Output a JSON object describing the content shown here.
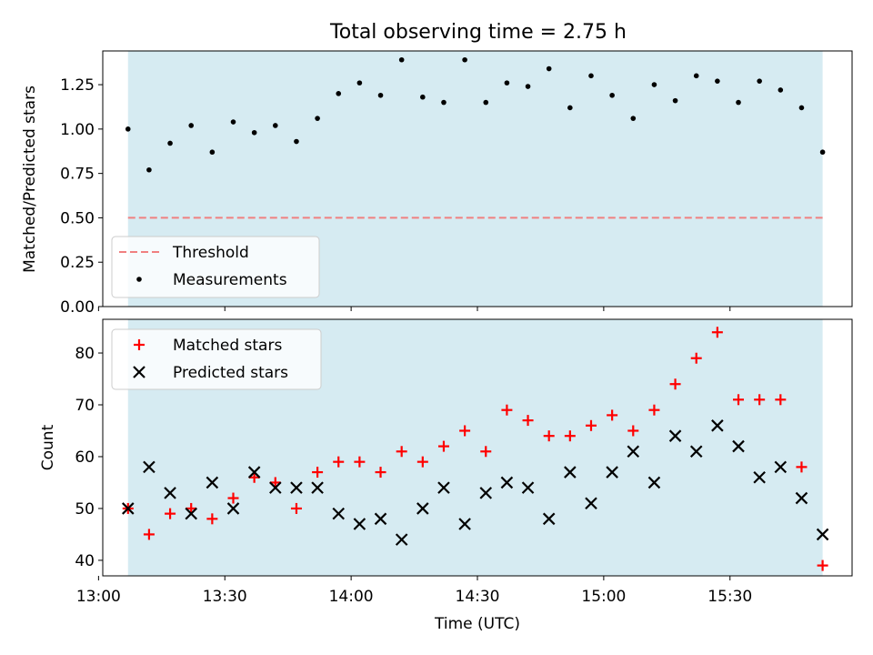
{
  "chart_data": [
    {
      "type": "scatter",
      "title": "Total observing time = 2.75 h",
      "xlabel": "",
      "ylabel": "Matched/Predicted stars",
      "xlim": [
        "13:01",
        "15:59"
      ],
      "ylim": [
        0,
        1.44
      ],
      "yticks": [
        "0.00",
        "0.25",
        "0.50",
        "0.75",
        "1.00",
        "1.25"
      ],
      "shaded_span": [
        "13:07",
        "15:52"
      ],
      "legend": {
        "placement": "lower left",
        "entries": [
          "Threshold",
          "Measurements"
        ]
      },
      "threshold": {
        "name": "Threshold",
        "y": 0.5,
        "color": "#f08080",
        "style": "dashed"
      },
      "series": [
        {
          "name": "Measurements",
          "marker": "dot",
          "color": "#000000",
          "x": [
            "13:07",
            "13:12",
            "13:17",
            "13:22",
            "13:27",
            "13:32",
            "13:37",
            "13:42",
            "13:47",
            "13:52",
            "13:57",
            "14:02",
            "14:07",
            "14:12",
            "14:17",
            "14:22",
            "14:27",
            "14:32",
            "14:37",
            "14:42",
            "14:47",
            "14:52",
            "14:57",
            "15:02",
            "15:07",
            "15:12",
            "15:17",
            "15:22",
            "15:27",
            "15:32",
            "15:37",
            "15:42",
            "15:47",
            "15:52"
          ],
          "values": [
            1.0,
            0.77,
            0.92,
            1.02,
            0.87,
            1.04,
            0.98,
            1.02,
            0.93,
            1.06,
            1.2,
            1.26,
            1.19,
            1.39,
            1.18,
            1.15,
            1.39,
            1.15,
            1.26,
            1.24,
            1.34,
            1.12,
            1.3,
            1.19,
            1.06,
            1.25,
            1.16,
            1.3,
            1.27,
            1.15,
            1.27,
            1.22,
            1.12,
            0.87
          ]
        }
      ]
    },
    {
      "type": "scatter",
      "title": "",
      "xlabel": "Time (UTC)",
      "ylabel": "Count",
      "xlim": [
        "13:01",
        "15:59"
      ],
      "ylim": [
        37,
        86.5
      ],
      "yticks": [
        "40",
        "50",
        "60",
        "70",
        "80"
      ],
      "xticks": [
        "13:00",
        "13:30",
        "14:00",
        "14:30",
        "15:00",
        "15:30"
      ],
      "shaded_span": [
        "13:07",
        "15:52"
      ],
      "legend": {
        "placement": "upper left",
        "entries": [
          "Matched stars",
          "Predicted stars"
        ]
      },
      "x": [
        "13:07",
        "13:12",
        "13:17",
        "13:22",
        "13:27",
        "13:32",
        "13:37",
        "13:42",
        "13:47",
        "13:52",
        "13:57",
        "14:02",
        "14:07",
        "14:12",
        "14:17",
        "14:22",
        "14:27",
        "14:32",
        "14:37",
        "14:42",
        "14:47",
        "14:52",
        "14:57",
        "15:02",
        "15:07",
        "15:12",
        "15:17",
        "15:22",
        "15:27",
        "15:32",
        "15:37",
        "15:42",
        "15:47",
        "15:52"
      ],
      "series": [
        {
          "name": "Matched stars",
          "marker": "plus",
          "color": "#ff0000",
          "values": [
            50,
            45,
            49,
            50,
            48,
            52,
            56,
            55,
            50,
            57,
            59,
            59,
            57,
            61,
            59,
            62,
            65,
            61,
            69,
            67,
            64,
            64,
            66,
            68,
            65,
            69,
            74,
            79,
            84,
            71,
            71,
            71,
            58,
            39
          ]
        },
        {
          "name": "Predicted stars",
          "marker": "x",
          "color": "#000000",
          "values": [
            50,
            58,
            53,
            49,
            55,
            50,
            57,
            54,
            54,
            54,
            49,
            47,
            48,
            44,
            50,
            54,
            47,
            53,
            55,
            54,
            48,
            57,
            51,
            57,
            61,
            55,
            64,
            61,
            66,
            62,
            56,
            58,
            52,
            45
          ]
        }
      ]
    }
  ]
}
